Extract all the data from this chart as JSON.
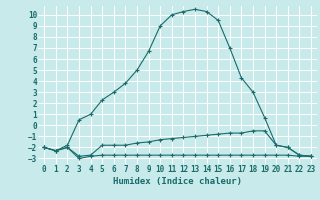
{
  "xlabel": "Humidex (Indice chaleur)",
  "bg_color": "#c8eaea",
  "grid_color": "#aad4d4",
  "line_color": "#1a6b6b",
  "xlim": [
    -0.5,
    23.5
  ],
  "ylim": [
    -3.5,
    10.8
  ],
  "xticks": [
    0,
    1,
    2,
    3,
    4,
    5,
    6,
    7,
    8,
    9,
    10,
    11,
    12,
    13,
    14,
    15,
    16,
    17,
    18,
    19,
    20,
    21,
    22,
    23
  ],
  "yticks": [
    -3,
    -2,
    -1,
    0,
    1,
    2,
    3,
    4,
    5,
    6,
    7,
    8,
    9,
    10
  ],
  "curve_main_x": [
    0,
    1,
    2,
    3,
    4,
    5,
    6,
    7,
    8,
    9,
    10,
    11,
    12,
    13,
    14,
    15,
    16,
    17,
    18,
    19,
    20,
    21,
    22,
    23
  ],
  "curve_main_y": [
    -2.0,
    -2.3,
    -1.8,
    0.5,
    1.0,
    2.3,
    3.0,
    3.8,
    5.0,
    6.7,
    9.0,
    10.0,
    10.3,
    10.5,
    10.3,
    9.5,
    7.0,
    4.3,
    3.0,
    0.7,
    -1.8,
    -2.0,
    -2.7,
    -2.8
  ],
  "curve_mid_x": [
    0,
    1,
    2,
    3,
    4,
    5,
    6,
    7,
    8,
    9,
    10,
    11,
    12,
    13,
    14,
    15,
    16,
    17,
    18,
    19,
    20,
    21,
    22,
    23
  ],
  "curve_mid_y": [
    -2.0,
    -2.3,
    -2.0,
    -2.8,
    -2.7,
    -1.8,
    -1.8,
    -1.8,
    -1.6,
    -1.5,
    -1.3,
    -1.2,
    -1.1,
    -1.0,
    -0.9,
    -0.8,
    -0.7,
    -0.7,
    -0.5,
    -0.5,
    -1.8,
    -2.0,
    -2.7,
    -2.8
  ],
  "curve_flat_x": [
    0,
    1,
    2,
    3,
    4,
    5,
    6,
    7,
    8,
    9,
    10,
    11,
    12,
    13,
    14,
    15,
    16,
    17,
    18,
    19,
    20,
    21,
    22,
    23
  ],
  "curve_flat_y": [
    -2.0,
    -2.3,
    -2.0,
    -3.0,
    -2.8,
    -2.7,
    -2.7,
    -2.7,
    -2.7,
    -2.7,
    -2.7,
    -2.7,
    -2.7,
    -2.7,
    -2.7,
    -2.7,
    -2.7,
    -2.7,
    -2.7,
    -2.7,
    -2.7,
    -2.7,
    -2.8,
    -2.8
  ]
}
